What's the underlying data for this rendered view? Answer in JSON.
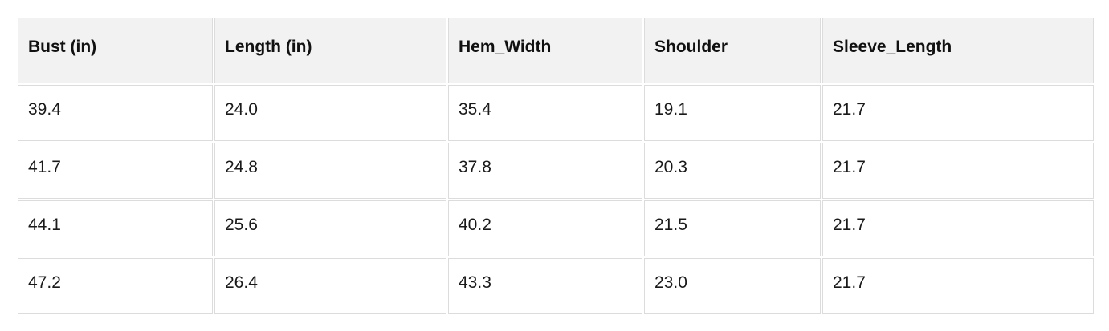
{
  "table": {
    "headers": [
      "Bust (in)",
      "Length (in)",
      "Hem_Width",
      "Shoulder",
      "Sleeve_Length"
    ],
    "rows": [
      [
        "39.4",
        "24.0",
        "35.4",
        "19.1",
        "21.7"
      ],
      [
        "41.7",
        "24.8",
        "37.8",
        "20.3",
        "21.7"
      ],
      [
        "44.1",
        "25.6",
        "40.2",
        "21.5",
        "21.7"
      ],
      [
        "47.2",
        "26.4",
        "43.3",
        "23.0",
        "21.7"
      ]
    ]
  },
  "colors": {
    "header_background": "#f2f2f2",
    "cell_background": "#ffffff",
    "border": "#dcdcdc",
    "text": "#111111",
    "page_background": "#ffffff"
  }
}
